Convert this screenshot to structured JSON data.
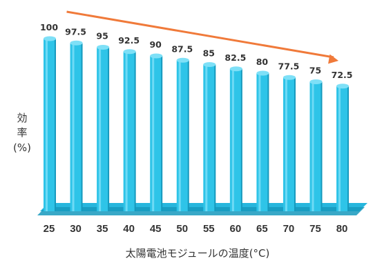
{
  "chart_data": {
    "type": "bar",
    "categories": [
      "25",
      "30",
      "35",
      "40",
      "45",
      "50",
      "55",
      "60",
      "65",
      "70",
      "75",
      "80"
    ],
    "values": [
      100,
      97.5,
      95,
      92.5,
      90,
      87.5,
      85,
      82.5,
      80,
      77.5,
      75,
      72.5
    ],
    "data_labels": [
      "100",
      "97.5",
      "95",
      "92.5",
      "90",
      "87.5",
      "85",
      "82.5",
      "80",
      "77.5",
      "75",
      "72.5"
    ],
    "xlabel": "太陽電池モジュールの温度(°C)",
    "ylabel_lines": [
      "効",
      "率",
      "(%)"
    ],
    "ylim": [
      0,
      100
    ],
    "grid": false,
    "legend": "none",
    "trend_arrow": {
      "direction": "down",
      "from_category": "30",
      "to_category": "80"
    },
    "colors": {
      "bar": "#2ec4e8",
      "bar_highlight": "#7ee0f7",
      "bar_shadow": "#1699bd",
      "floor": "#27b6dd",
      "arrow": "#f07a3a",
      "text": "#333333"
    }
  }
}
